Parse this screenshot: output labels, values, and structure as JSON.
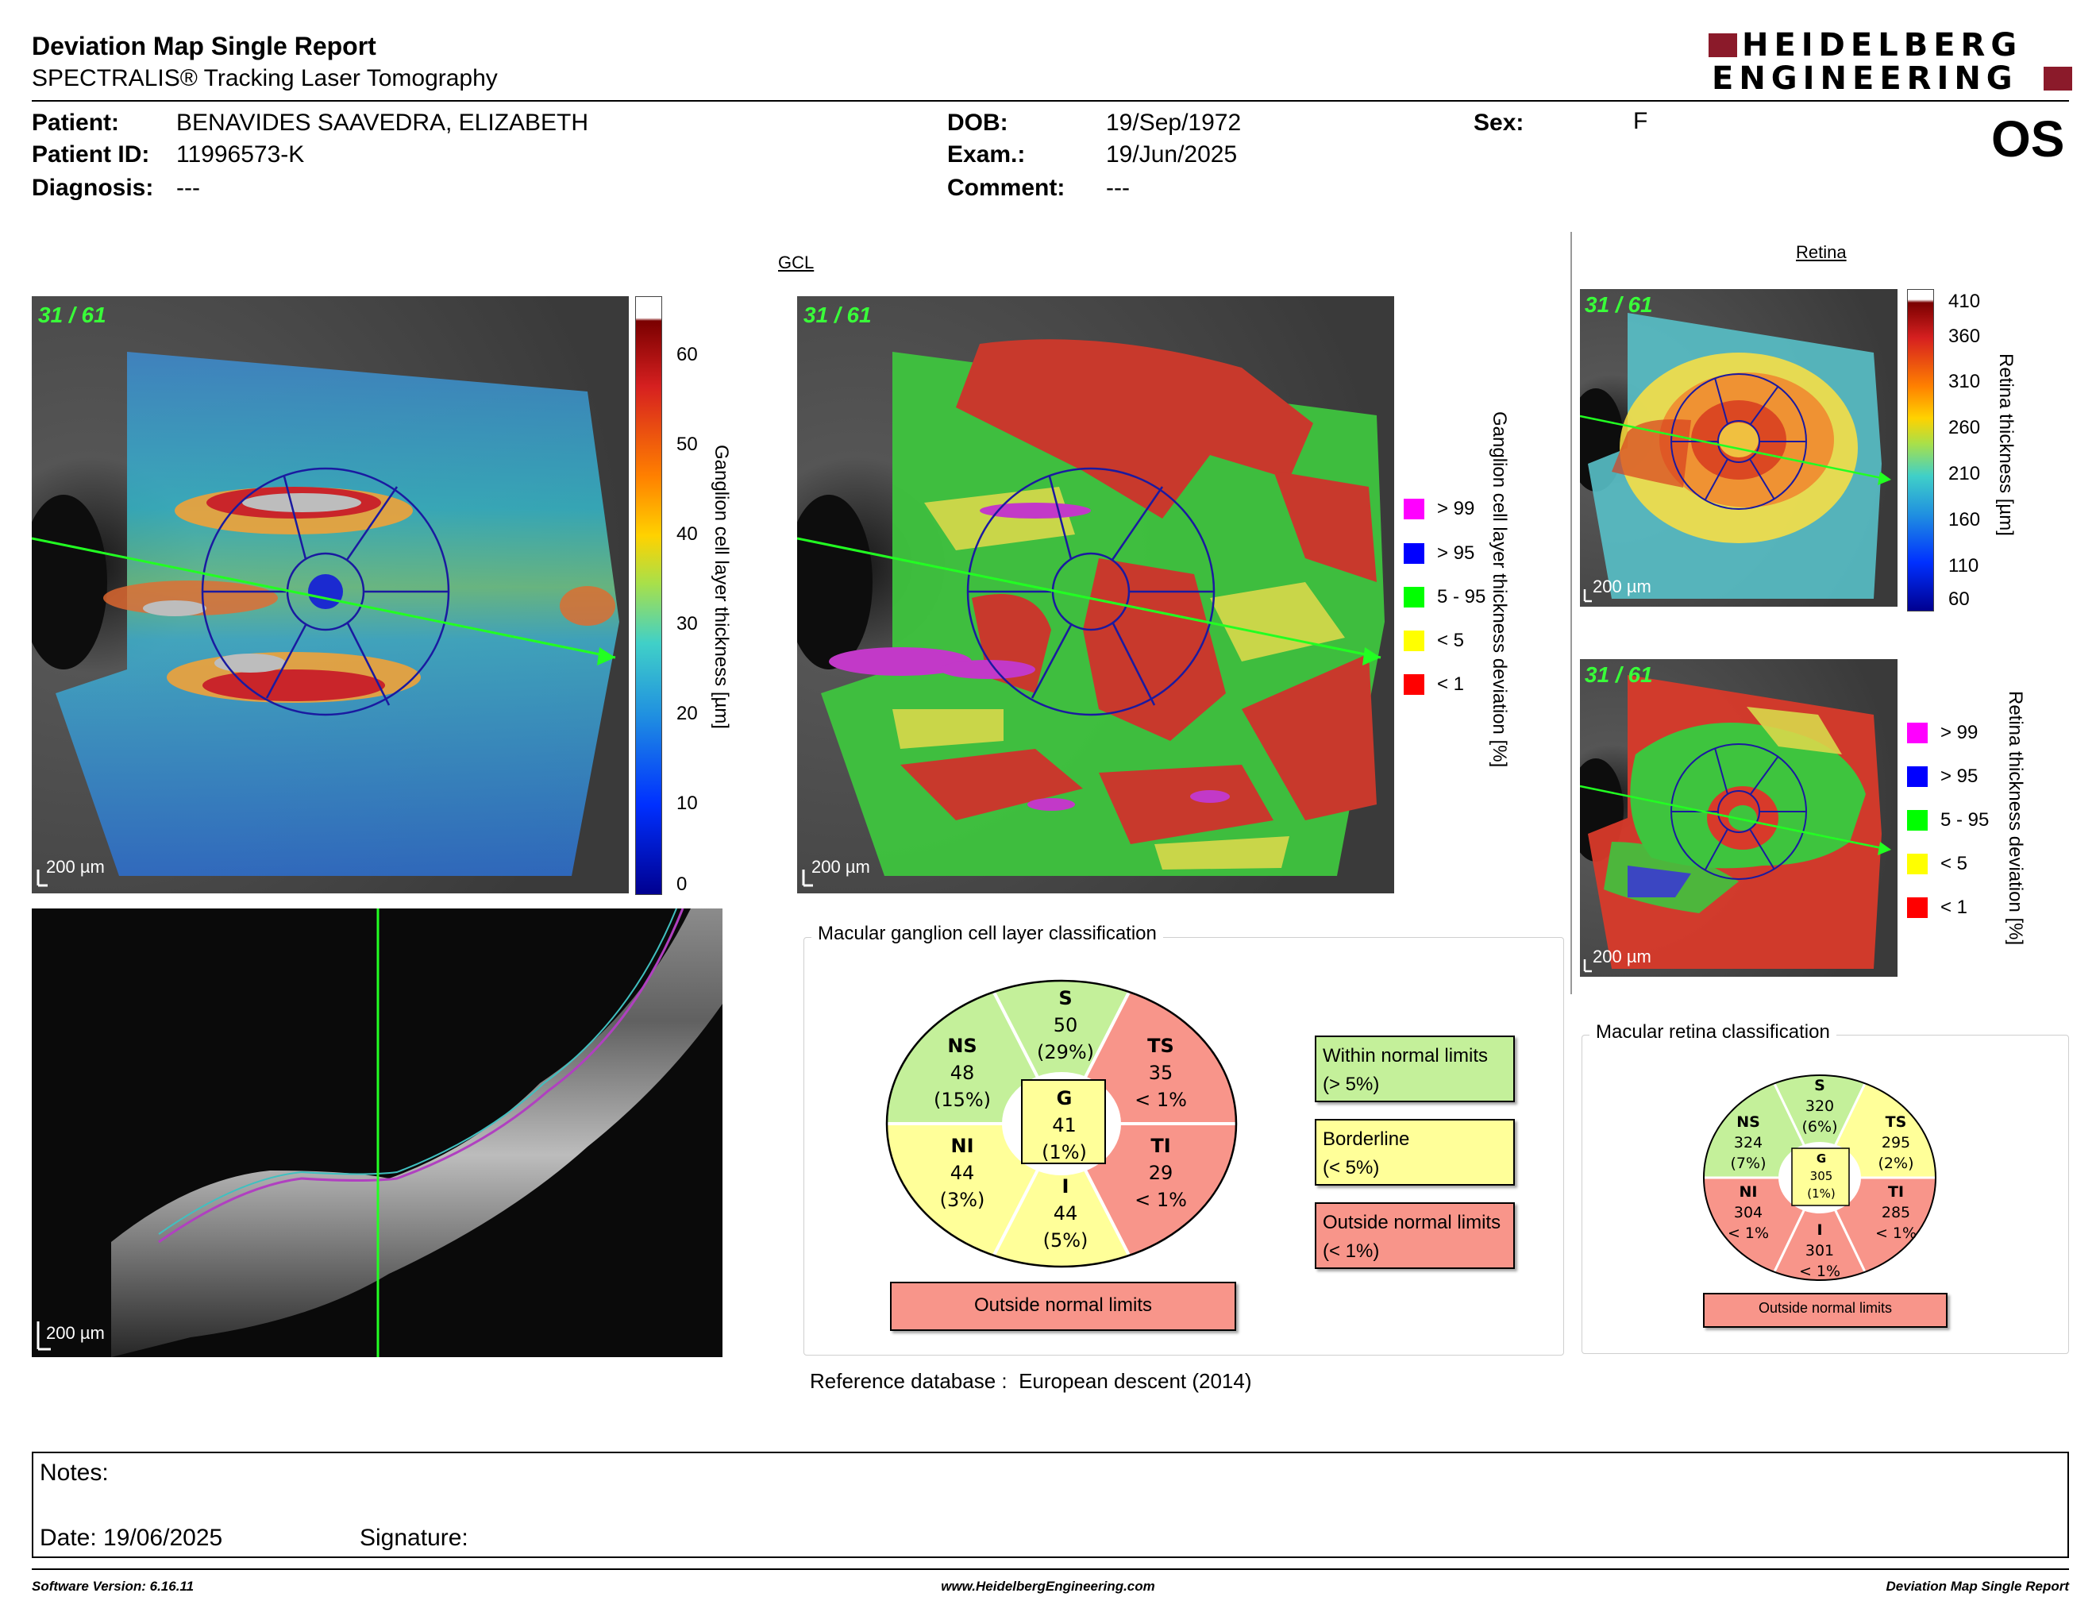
{
  "header": {
    "title": "Deviation Map Single Report",
    "subtitle": "SPECTRALIS® Tracking Laser Tomography",
    "logo_line1": "HEIDELBERG",
    "logo_line2": "ENGINEERING",
    "eye": "OS"
  },
  "patient": {
    "patient_label": "Patient:",
    "patient_value": "BENAVIDES SAAVEDRA, ELIZABETH",
    "id_label": "Patient ID:",
    "id_value": "11996573-K",
    "diag_label": "Diagnosis:",
    "diag_value": "---",
    "dob_label": "DOB:",
    "dob_value": "19/Sep/1972",
    "exam_label": "Exam.:",
    "exam_value": "19/Jun/2025",
    "comment_label": "Comment:",
    "comment_value": "---",
    "sex_label": "Sex:",
    "sex_value": "F"
  },
  "gcl": {
    "section_label": "GCL",
    "frame_count": "31 / 61",
    "scale_label": "200 µm",
    "thickness_ticks": [
      "60",
      "50",
      "40",
      "30",
      "20",
      "10",
      "0"
    ],
    "thickness_axis": "Ganglion cell layer thickness [µm]",
    "deviation_axis": "Ganglion cell layer thickness deviation [%]",
    "legend": [
      {
        "label": "> 99",
        "color": "#ff00ff"
      },
      {
        "label": "> 95",
        "color": "#0000ff"
      },
      {
        "label": "5 - 95",
        "color": "#00ff00"
      },
      {
        "label": "< 5",
        "color": "#ffff00"
      },
      {
        "label": "< 1",
        "color": "#ff0000"
      }
    ]
  },
  "retina": {
    "section_label": "Retina",
    "frame_count": "31 / 61",
    "scale_label": "200 µm",
    "thickness_ticks": [
      "410",
      "360",
      "310",
      "260",
      "210",
      "160",
      "110",
      "60"
    ],
    "thickness_axis": "Retina thickness [µm]",
    "deviation_axis": "Retina thickness deviation [%]",
    "legend": [
      {
        "label": "> 99",
        "color": "#ff00ff"
      },
      {
        "label": "> 95",
        "color": "#0000ff"
      },
      {
        "label": "5 - 95",
        "color": "#00ff00"
      },
      {
        "label": "< 5",
        "color": "#ffff00"
      },
      {
        "label": "< 1",
        "color": "#ff0000"
      }
    ]
  },
  "bscan": {
    "scale_label": "200 µm"
  },
  "gcl_classification": {
    "title": "Macular ganglion cell layer classification",
    "sectors": {
      "S": {
        "name": "S",
        "value": "50",
        "pct": "(29%)"
      },
      "NS": {
        "name": "NS",
        "value": "48",
        "pct": "(15%)"
      },
      "TS": {
        "name": "TS",
        "value": "35",
        "pct": "< 1%"
      },
      "G": {
        "name": "G",
        "value": "41",
        "pct": "(1%)"
      },
      "NI": {
        "name": "NI",
        "value": "44",
        "pct": "(3%)"
      },
      "TI": {
        "name": "TI",
        "value": "29",
        "pct": "< 1%"
      },
      "I": {
        "name": "I",
        "value": "44",
        "pct": "(5%)"
      }
    },
    "result": "Outside normal limits",
    "legend_within_1": "Within normal limits",
    "legend_within_2": "(> 5%)",
    "legend_border_1": "Borderline",
    "legend_border_2": "(< 5%)",
    "legend_outside_1": "Outside normal limits",
    "legend_outside_2": "(< 1%)"
  },
  "retina_classification": {
    "title": "Macular retina classification",
    "sectors": {
      "S": {
        "name": "S",
        "value": "320",
        "pct": "(6%)"
      },
      "NS": {
        "name": "NS",
        "value": "324",
        "pct": "(7%)"
      },
      "TS": {
        "name": "TS",
        "value": "295",
        "pct": "(2%)"
      },
      "G": {
        "name": "G",
        "value": "305",
        "pct": "(1%)"
      },
      "NI": {
        "name": "NI",
        "value": "304",
        "pct": "< 1%"
      },
      "TI": {
        "name": "TI",
        "value": "285",
        "pct": "< 1%"
      },
      "I": {
        "name": "I",
        "value": "301",
        "pct": "< 1%"
      }
    },
    "result": "Outside normal limits"
  },
  "reference": {
    "label": "Reference database :",
    "value": "European descent (2014)"
  },
  "notes": {
    "notes_label": "Notes:",
    "date_label": "Date: 19/06/2025",
    "signature_label": "Signature:"
  },
  "footer": {
    "software": "Software Version: 6.16.11",
    "website": "www.HeidelbergEngineering.com",
    "report": "Deviation Map Single Report"
  },
  "colors": {
    "within": "#c4f09a",
    "borderline": "#ffff99",
    "outside": "#f8958a",
    "logo": "#8b1a2a"
  }
}
